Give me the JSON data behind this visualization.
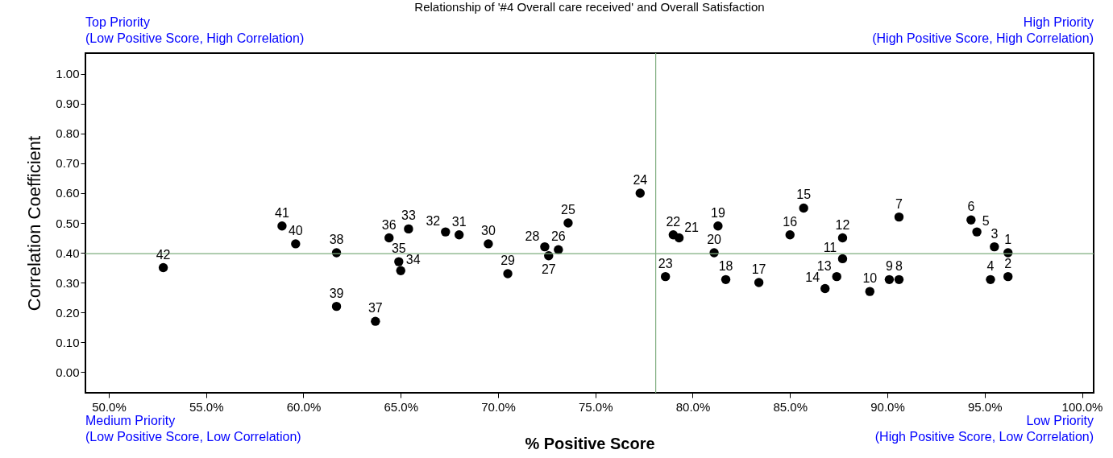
{
  "chart_data": {
    "type": "scatter",
    "title": "Relationship of '#4 Overall care received' and Overall Satisfaction",
    "xlabel": "% Positive Score",
    "ylabel": "Correlation Coefficient",
    "annotations": [
      {
        "text": "1",
        "x": 96.2,
        "y": 0.4
      },
      {
        "text": "2",
        "x": 96.2,
        "y": 0.32
      },
      {
        "text": "3",
        "x": 95.5,
        "y": 0.42
      },
      {
        "text": "4",
        "x": 95.3,
        "y": 0.31
      },
      {
        "text": "5",
        "x": 94.6,
        "y": 0.47
      },
      {
        "text": "6",
        "x": 94.3,
        "y": 0.51
      },
      {
        "text": "7",
        "x": 90.6,
        "y": 0.52
      },
      {
        "text": "8",
        "x": 90.6,
        "y": 0.31
      },
      {
        "text": "9",
        "x": 90.1,
        "y": 0.31
      },
      {
        "text": "10",
        "x": 89.1,
        "y": 0.27
      },
      {
        "text": "11",
        "x": 87.7,
        "y": 0.38
      },
      {
        "text": "12",
        "x": 87.7,
        "y": 0.45
      },
      {
        "text": "13",
        "x": 87.4,
        "y": 0.32
      },
      {
        "text": "14",
        "x": 86.8,
        "y": 0.28
      },
      {
        "text": "15",
        "x": 85.7,
        "y": 0.55
      },
      {
        "text": "16",
        "x": 85.0,
        "y": 0.46
      },
      {
        "text": "17",
        "x": 83.4,
        "y": 0.3
      },
      {
        "text": "18",
        "x": 81.7,
        "y": 0.31
      },
      {
        "text": "19",
        "x": 81.3,
        "y": 0.49
      },
      {
        "text": "20",
        "x": 81.1,
        "y": 0.4
      },
      {
        "text": "21",
        "x": 79.3,
        "y": 0.45
      },
      {
        "text": "22",
        "x": 79.0,
        "y": 0.46
      },
      {
        "text": "23",
        "x": 78.6,
        "y": 0.32
      },
      {
        "text": "24",
        "x": 77.3,
        "y": 0.6
      },
      {
        "text": "25",
        "x": 73.6,
        "y": 0.5
      },
      {
        "text": "26",
        "x": 73.1,
        "y": 0.41
      },
      {
        "text": "27",
        "x": 72.6,
        "y": 0.39
      },
      {
        "text": "28",
        "x": 72.4,
        "y": 0.42
      },
      {
        "text": "29",
        "x": 70.5,
        "y": 0.33
      },
      {
        "text": "30",
        "x": 69.5,
        "y": 0.43
      },
      {
        "text": "31",
        "x": 68.0,
        "y": 0.46
      },
      {
        "text": "32",
        "x": 67.3,
        "y": 0.47
      },
      {
        "text": "33",
        "x": 65.4,
        "y": 0.48
      },
      {
        "text": "34",
        "x": 65.0,
        "y": 0.34
      },
      {
        "text": "35",
        "x": 64.9,
        "y": 0.37
      },
      {
        "text": "36",
        "x": 64.4,
        "y": 0.45
      },
      {
        "text": "37",
        "x": 63.7,
        "y": 0.17
      },
      {
        "text": "38",
        "x": 61.7,
        "y": 0.4
      },
      {
        "text": "39",
        "x": 61.7,
        "y": 0.22
      },
      {
        "text": "40",
        "x": 59.6,
        "y": 0.43
      },
      {
        "text": "41",
        "x": 58.9,
        "y": 0.49
      },
      {
        "text": "42",
        "x": 52.8,
        "y": 0.35
      },
      "Top Priority\n(Low Positive Score, High Correlation)",
      "High Priority\n(High Positive Score, High Correlation)",
      "Medium Priority\n(Low Positive Score, Low Correlation)",
      "Low Priority\n(High Positive Score, Low Correlation)"
    ],
    "x": [
      96.2,
      96.2,
      95.5,
      95.3,
      94.6,
      94.3,
      90.6,
      90.6,
      90.1,
      89.1,
      87.7,
      87.7,
      87.4,
      86.8,
      85.7,
      85.0,
      83.4,
      81.7,
      81.3,
      81.1,
      79.3,
      79.0,
      78.6,
      77.3,
      73.6,
      73.1,
      72.6,
      72.4,
      70.5,
      69.5,
      68.0,
      67.3,
      65.4,
      65.0,
      64.9,
      64.4,
      63.7,
      61.7,
      61.7,
      59.6,
      58.9,
      52.8
    ],
    "values": [
      0.4,
      0.32,
      0.42,
      0.31,
      0.47,
      0.51,
      0.52,
      0.31,
      0.31,
      0.27,
      0.38,
      0.45,
      0.32,
      0.28,
      0.55,
      0.46,
      0.3,
      0.31,
      0.49,
      0.4,
      0.45,
      0.46,
      0.32,
      0.6,
      0.5,
      0.41,
      0.39,
      0.42,
      0.33,
      0.43,
      0.46,
      0.47,
      0.48,
      0.34,
      0.37,
      0.45,
      0.17,
      0.4,
      0.22,
      0.43,
      0.49,
      0.35
    ],
    "color": "#000000",
    "marker": "circle",
    "grid": false,
    "xlim": [
      48.8,
      100.6
    ],
    "ylim": [
      -0.07,
      1.07
    ],
    "xticks": [
      {
        "value": 50,
        "label": "50.0%"
      },
      {
        "value": 55,
        "label": "55.0%"
      },
      {
        "value": 60,
        "label": "60.0%"
      },
      {
        "value": 65,
        "label": "65.0%"
      },
      {
        "value": 70,
        "label": "70.0%"
      },
      {
        "value": 75,
        "label": "75.0%"
      },
      {
        "value": 80,
        "label": "80.0%"
      },
      {
        "value": 85,
        "label": "85.0%"
      },
      {
        "value": 90,
        "label": "90.0%"
      },
      {
        "value": 95,
        "label": "95.0%"
      },
      {
        "value": 100,
        "label": "100.0%"
      }
    ],
    "yticks": [
      {
        "value": 0,
        "label": "0.00"
      },
      {
        "value": 0.1,
        "label": "0.10"
      },
      {
        "value": 0.2,
        "label": "0.20"
      },
      {
        "value": 0.3,
        "label": "0.30"
      },
      {
        "value": 0.4,
        "label": "0.40"
      },
      {
        "value": 0.5,
        "label": "0.50"
      },
      {
        "value": 0.6,
        "label": "0.60"
      },
      {
        "value": 0.7,
        "label": "0.70"
      },
      {
        "value": 0.8,
        "label": "0.80"
      },
      {
        "value": 0.9,
        "label": "0.90"
      },
      {
        "value": 1,
        "label": "1.00"
      }
    ],
    "ref_lines": [
      {
        "axis": "x",
        "value": 78.1,
        "color": "#7fae7f"
      },
      {
        "axis": "y",
        "value": 0.397,
        "color": "#7fae7f"
      }
    ]
  }
}
